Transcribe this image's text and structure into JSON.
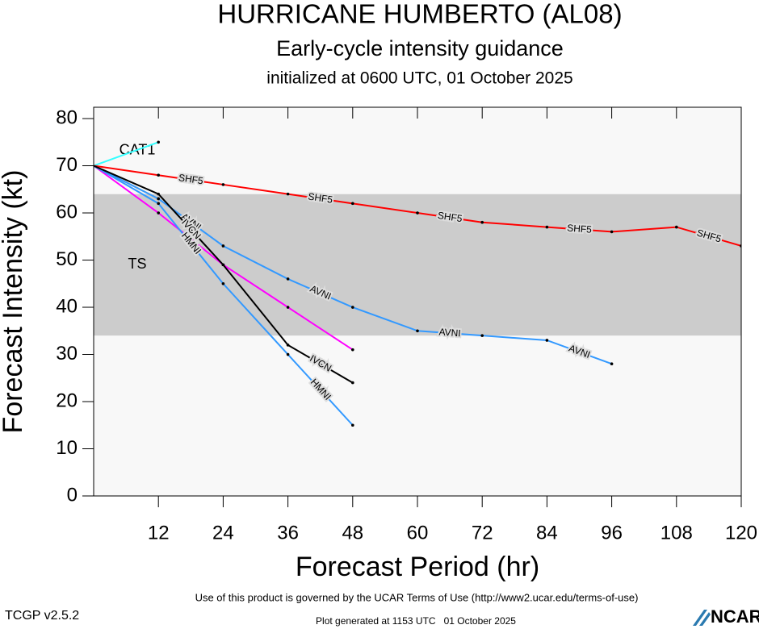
{
  "chart_data": {
    "type": "line",
    "title": "HURRICANE HUMBERTO (AL08)",
    "subtitle": "Early-cycle intensity guidance",
    "initialized": "initialized at 0600 UTC, 01 October 2025",
    "x_label": "Forecast Period (hr)",
    "y_label": "Forecast Intensity (kt)",
    "x": [
      0,
      12,
      24,
      36,
      48,
      60,
      72,
      84,
      96,
      108,
      120
    ],
    "xlim": [
      0,
      120
    ],
    "xticks": [
      12,
      24,
      36,
      48,
      60,
      72,
      84,
      96,
      108,
      120
    ],
    "ylim": [
      0,
      82.4
    ],
    "yticks": [
      0,
      10,
      20,
      30,
      40,
      50,
      60,
      70,
      80
    ],
    "regions": [
      {
        "label": "TS",
        "ymin": 34,
        "ymax": 64,
        "color": "#cccccc"
      },
      {
        "label": "CAT1",
        "ymin": 64,
        "ymax": 82.4,
        "color": "#f8f8f8"
      }
    ],
    "series": [
      {
        "color": "#33ffff",
        "values": [
          70,
          75,
          null,
          null,
          null,
          null,
          null,
          null,
          null,
          null,
          null
        ]
      },
      {
        "color": "#e6a040",
        "values": [
          70,
          63,
          null,
          null,
          null,
          null,
          null,
          null,
          null,
          null,
          null
        ]
      },
      {
        "name": "SHF5",
        "color": "#ff0000",
        "values": [
          70,
          68,
          66,
          64,
          62,
          60,
          58,
          57,
          56,
          57,
          53
        ]
      },
      {
        "color": "#ff00ff",
        "values": [
          70,
          60,
          49,
          40,
          31,
          null,
          null,
          null,
          null,
          null,
          null
        ]
      },
      {
        "name": "AVNI",
        "color": "#3399ff",
        "values": [
          70,
          63,
          53,
          46,
          40,
          35,
          34,
          33,
          28,
          null,
          null
        ]
      },
      {
        "name": "HMNI",
        "color": "#3399ff",
        "values": [
          70,
          62,
          45,
          30,
          15,
          null,
          null,
          null,
          null,
          null,
          null
        ]
      },
      {
        "name": "IVCN",
        "color": "#000000",
        "values": [
          70,
          64,
          49,
          32,
          24,
          null,
          null,
          null,
          null,
          null,
          null
        ]
      }
    ],
    "terms": "Use of this product is governed by the UCAR Terms of Use (http://www2.ucar.edu/terms-of-use)",
    "version": "TCGP v2.5.2",
    "generated": "Plot generated at 1153 UTC   01 October 2025",
    "logo": "NCAR"
  }
}
